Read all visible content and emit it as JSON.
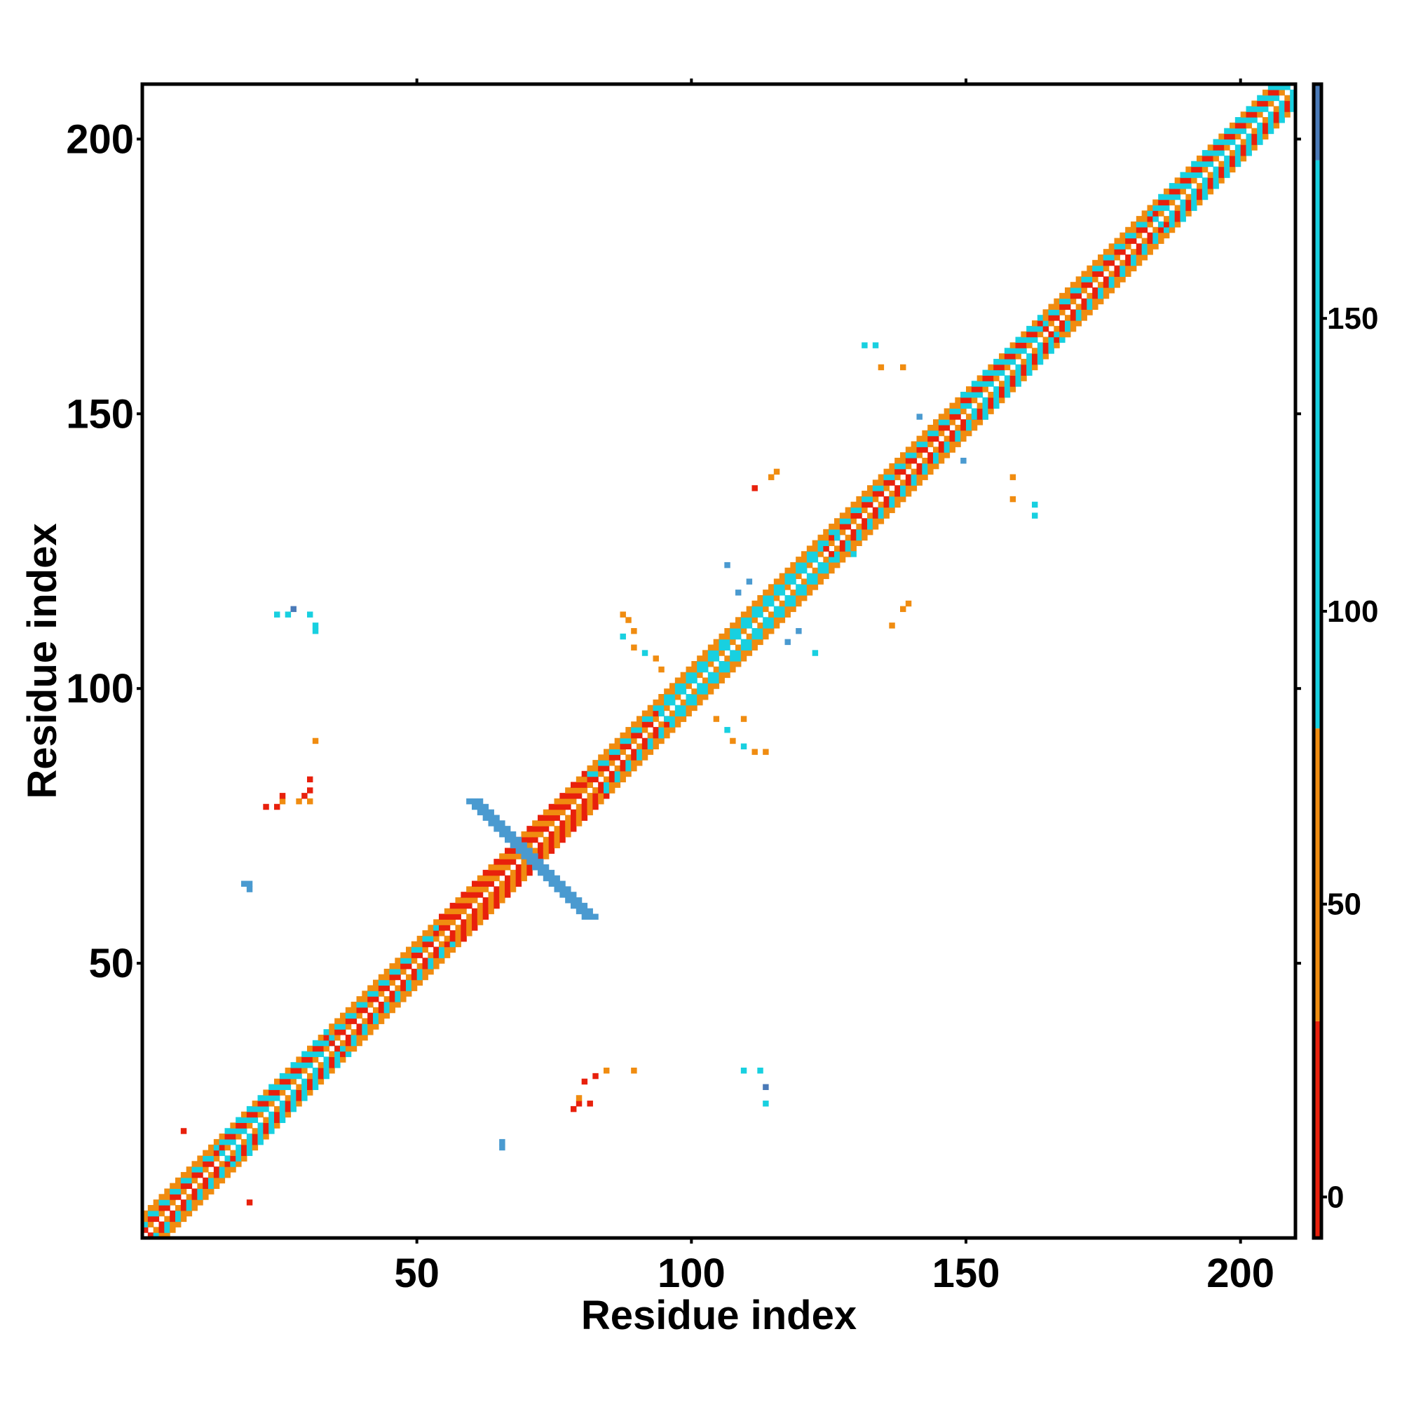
{
  "chart_data": {
    "type": "heatmap",
    "title": "",
    "xlabel": "Residue index",
    "ylabel": "Residue index",
    "xlim": [
      0,
      210
    ],
    "ylim": [
      0,
      210
    ],
    "x_ticks": [
      50,
      100,
      150,
      200
    ],
    "y_ticks": [
      50,
      100,
      150,
      200
    ],
    "x_tick_labels": [
      "50",
      "100",
      "150",
      "200"
    ],
    "y_tick_labels": [
      "50",
      "100",
      "150",
      "200"
    ],
    "grid": false,
    "legend": "colorbar-right",
    "colorbar": {
      "range": [
        -7,
        190
      ],
      "ticks": [
        0,
        50,
        100,
        150
      ],
      "tick_labels": [
        "0",
        "50",
        "100",
        "150"
      ],
      "bands": [
        {
          "from": -7,
          "to": 30,
          "color": "#e8200c"
        },
        {
          "from": 30,
          "to": 80,
          "color": "#f08c10"
        },
        {
          "from": 80,
          "to": 177,
          "color": "#18d0e0"
        },
        {
          "from": 177,
          "to": 190,
          "color": "#4a7ab8"
        }
      ]
    },
    "colors": {
      "red": "#e8200c",
      "orange": "#f08c10",
      "cyan": "#18d0e0",
      "blue": "#4a7ab8",
      "steel": "#4a9ad0"
    },
    "diagonal": {
      "start": 1,
      "end": 210,
      "offdiag_width": 4,
      "segments": [
        {
          "from": 1,
          "to": 15,
          "pattern": [
            "orange",
            "red",
            "cyan",
            "orange"
          ]
        },
        {
          "from": 15,
          "to": 35,
          "pattern": [
            "orange",
            "cyan",
            "red",
            "cyan"
          ]
        },
        {
          "from": 35,
          "to": 55,
          "pattern": [
            "orange",
            "red",
            "cyan",
            "orange"
          ]
        },
        {
          "from": 55,
          "to": 82,
          "pattern": [
            "red",
            "orange",
            "red",
            "orange"
          ]
        },
        {
          "from": 82,
          "to": 95,
          "pattern": [
            "orange",
            "red",
            "cyan",
            "orange"
          ]
        },
        {
          "from": 95,
          "to": 125,
          "pattern": [
            "orange",
            "cyan",
            "cyan",
            "orange"
          ]
        },
        {
          "from": 125,
          "to": 150,
          "pattern": [
            "orange",
            "red",
            "cyan",
            "orange"
          ]
        },
        {
          "from": 150,
          "to": 165,
          "pattern": [
            "orange",
            "cyan",
            "red",
            "cyan"
          ]
        },
        {
          "from": 165,
          "to": 185,
          "pattern": [
            "orange",
            "red",
            "cyan",
            "orange"
          ]
        },
        {
          "from": 185,
          "to": 210,
          "pattern": [
            "orange",
            "cyan",
            "red",
            "cyan"
          ]
        }
      ]
    },
    "cross": [
      {
        "x_from": 60,
        "y_from": 80,
        "x_to": 81,
        "y_to": 59,
        "color": "steel",
        "width": 3
      }
    ],
    "points": [
      {
        "x": 8,
        "y": 20,
        "v": "red"
      },
      {
        "x": 20,
        "y": 7,
        "v": "red"
      },
      {
        "x": 19,
        "y": 65,
        "v": "steel"
      },
      {
        "x": 20,
        "y": 65,
        "v": "steel"
      },
      {
        "x": 20,
        "y": 64,
        "v": "steel"
      },
      {
        "x": 23,
        "y": 79,
        "v": "red"
      },
      {
        "x": 25,
        "y": 79,
        "v": "red"
      },
      {
        "x": 26,
        "y": 80,
        "v": "orange"
      },
      {
        "x": 26,
        "y": 81,
        "v": "red"
      },
      {
        "x": 29,
        "y": 80,
        "v": "orange"
      },
      {
        "x": 30,
        "y": 81,
        "v": "red"
      },
      {
        "x": 31,
        "y": 82,
        "v": "red"
      },
      {
        "x": 31,
        "y": 84,
        "v": "red"
      },
      {
        "x": 31,
        "y": 80,
        "v": "orange"
      },
      {
        "x": 32,
        "y": 91,
        "v": "orange"
      },
      {
        "x": 25,
        "y": 114,
        "v": "cyan"
      },
      {
        "x": 27,
        "y": 114,
        "v": "cyan"
      },
      {
        "x": 28,
        "y": 115,
        "v": "blue"
      },
      {
        "x": 31,
        "y": 114,
        "v": "cyan"
      },
      {
        "x": 32,
        "y": 112,
        "v": "cyan"
      },
      {
        "x": 32,
        "y": 111,
        "v": "cyan"
      },
      {
        "x": 66,
        "y": 18,
        "v": "steel"
      },
      {
        "x": 66,
        "y": 17,
        "v": "steel"
      },
      {
        "x": 79,
        "y": 24,
        "v": "red"
      },
      {
        "x": 80,
        "y": 25,
        "v": "red"
      },
      {
        "x": 82,
        "y": 25,
        "v": "red"
      },
      {
        "x": 80,
        "y": 26,
        "v": "orange"
      },
      {
        "x": 81,
        "y": 29,
        "v": "red"
      },
      {
        "x": 83,
        "y": 30,
        "v": "red"
      },
      {
        "x": 85,
        "y": 31,
        "v": "orange"
      },
      {
        "x": 90,
        "y": 31,
        "v": "orange"
      },
      {
        "x": 110,
        "y": 31,
        "v": "cyan"
      },
      {
        "x": 113,
        "y": 31,
        "v": "cyan"
      },
      {
        "x": 114,
        "y": 28,
        "v": "blue"
      },
      {
        "x": 114,
        "y": 25,
        "v": "cyan"
      },
      {
        "x": 88,
        "y": 114,
        "v": "orange"
      },
      {
        "x": 89,
        "y": 113,
        "v": "orange"
      },
      {
        "x": 90,
        "y": 111,
        "v": "orange"
      },
      {
        "x": 88,
        "y": 110,
        "v": "cyan"
      },
      {
        "x": 90,
        "y": 108,
        "v": "orange"
      },
      {
        "x": 92,
        "y": 107,
        "v": "cyan"
      },
      {
        "x": 94,
        "y": 106,
        "v": "orange"
      },
      {
        "x": 95,
        "y": 104,
        "v": "orange"
      },
      {
        "x": 105,
        "y": 95,
        "v": "orange"
      },
      {
        "x": 107,
        "y": 93,
        "v": "cyan"
      },
      {
        "x": 108,
        "y": 91,
        "v": "orange"
      },
      {
        "x": 110,
        "y": 90,
        "v": "cyan"
      },
      {
        "x": 112,
        "y": 89,
        "v": "orange"
      },
      {
        "x": 114,
        "y": 89,
        "v": "orange"
      },
      {
        "x": 110,
        "y": 95,
        "v": "orange"
      },
      {
        "x": 109,
        "y": 118,
        "v": "steel"
      },
      {
        "x": 111,
        "y": 120,
        "v": "steel"
      },
      {
        "x": 107,
        "y": 123,
        "v": "steel"
      },
      {
        "x": 118,
        "y": 109,
        "v": "steel"
      },
      {
        "x": 120,
        "y": 111,
        "v": "steel"
      },
      {
        "x": 123,
        "y": 107,
        "v": "cyan"
      },
      {
        "x": 112,
        "y": 137,
        "v": "red"
      },
      {
        "x": 115,
        "y": 139,
        "v": "orange"
      },
      {
        "x": 116,
        "y": 140,
        "v": "orange"
      },
      {
        "x": 137,
        "y": 112,
        "v": "orange"
      },
      {
        "x": 139,
        "y": 115,
        "v": "orange"
      },
      {
        "x": 140,
        "y": 116,
        "v": "orange"
      },
      {
        "x": 132,
        "y": 163,
        "v": "cyan"
      },
      {
        "x": 134,
        "y": 163,
        "v": "cyan"
      },
      {
        "x": 135,
        "y": 159,
        "v": "orange"
      },
      {
        "x": 139,
        "y": 159,
        "v": "orange"
      },
      {
        "x": 159,
        "y": 139,
        "v": "orange"
      },
      {
        "x": 159,
        "y": 135,
        "v": "orange"
      },
      {
        "x": 163,
        "y": 134,
        "v": "cyan"
      },
      {
        "x": 163,
        "y": 132,
        "v": "cyan"
      },
      {
        "x": 150,
        "y": 142,
        "v": "steel"
      },
      {
        "x": 142,
        "y": 150,
        "v": "steel"
      },
      {
        "x": 127,
        "y": 128,
        "v": "cyan"
      },
      {
        "x": 130,
        "y": 125,
        "v": "cyan"
      }
    ]
  }
}
